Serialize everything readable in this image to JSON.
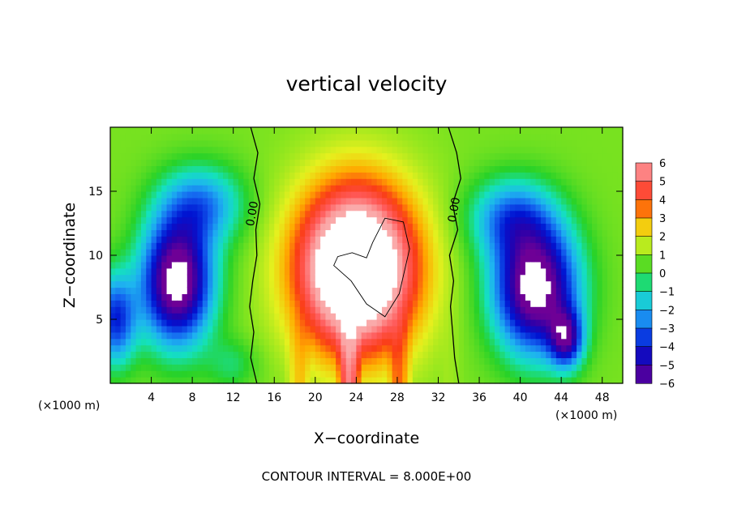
{
  "chart_data": {
    "type": "heatmap",
    "title": "vertical velocity",
    "xlabel": "X−coordinate",
    "ylabel": "Z−coordinate",
    "x_unit_left": "(×1000 m)",
    "x_unit_right": "(×1000 m)",
    "footer": "CONTOUR INTERVAL = 8.000E+00",
    "xlim": [
      0,
      50
    ],
    "ylim": [
      0,
      20
    ],
    "x_ticks": [
      4,
      8,
      12,
      16,
      20,
      24,
      28,
      32,
      36,
      40,
      44,
      48
    ],
    "x_tick_labels": [
      "4",
      "8",
      "12",
      "16",
      "20",
      "24",
      "28",
      "32",
      "36",
      "40",
      "44",
      "48"
    ],
    "y_ticks": [
      5,
      10,
      15
    ],
    "y_tick_labels": [
      "5",
      "10",
      "15"
    ],
    "colorbar": {
      "range": [
        -6,
        6
      ],
      "tick_values": [
        6,
        5,
        4,
        3,
        2,
        1,
        0,
        -1,
        -2,
        -3,
        -4,
        -5,
        -6
      ],
      "tick_labels": [
        "6",
        "5",
        "4",
        "3",
        "2",
        "1",
        "0",
        "−1",
        "−2",
        "−3",
        "−4",
        "−5",
        "−6"
      ]
    },
    "contour_labels": [
      {
        "text": "0.00",
        "x": 14.2,
        "z": 13.2
      },
      {
        "text": "0.00",
        "x": 33.9,
        "z": 13.5
      }
    ],
    "field_features": [
      {
        "kind": "updraft",
        "x": 24,
        "z": 9,
        "peak": 9
      },
      {
        "kind": "downdraft",
        "x": 6.5,
        "z": 8,
        "peak": -8
      },
      {
        "kind": "downdraft",
        "x": 41.5,
        "z": 7.5,
        "peak": -8
      }
    ]
  }
}
